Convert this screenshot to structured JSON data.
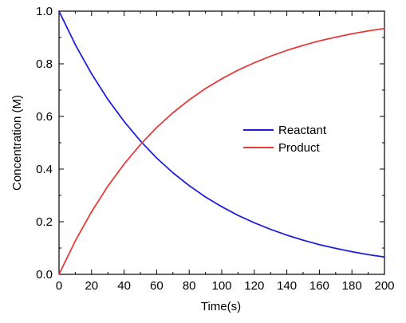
{
  "chart_data": {
    "type": "line",
    "title": "",
    "xlabel": "Time(s)",
    "ylabel": "Concentration (M)",
    "xlim": [
      0,
      200
    ],
    "ylim": [
      0.0,
      1.0
    ],
    "x_major_ticks": [
      "0",
      "20",
      "40",
      "60",
      "80",
      "100",
      "120",
      "140",
      "160",
      "180",
      "200"
    ],
    "y_major_ticks": [
      "0.0",
      "0.2",
      "0.4",
      "0.6",
      "0.8",
      "1.0"
    ],
    "grid": false,
    "legend_position": "center-right",
    "x": [
      0,
      10,
      20,
      30,
      40,
      50,
      60,
      70,
      80,
      90,
      100,
      110,
      120,
      130,
      140,
      150,
      160,
      170,
      180,
      190,
      200
    ],
    "series": [
      {
        "name": "Reactant",
        "color": "#1f1fd6",
        "values": [
          1.0,
          0.873,
          0.762,
          0.665,
          0.581,
          0.507,
          0.442,
          0.386,
          0.337,
          0.294,
          0.257,
          0.224,
          0.196,
          0.171,
          0.149,
          0.13,
          0.113,
          0.099,
          0.086,
          0.075,
          0.066
        ]
      },
      {
        "name": "Product",
        "color": "#e53b3b",
        "values": [
          0.0,
          0.127,
          0.238,
          0.335,
          0.419,
          0.493,
          0.558,
          0.614,
          0.663,
          0.706,
          0.743,
          0.776,
          0.804,
          0.829,
          0.851,
          0.87,
          0.887,
          0.901,
          0.914,
          0.925,
          0.934
        ]
      }
    ]
  }
}
